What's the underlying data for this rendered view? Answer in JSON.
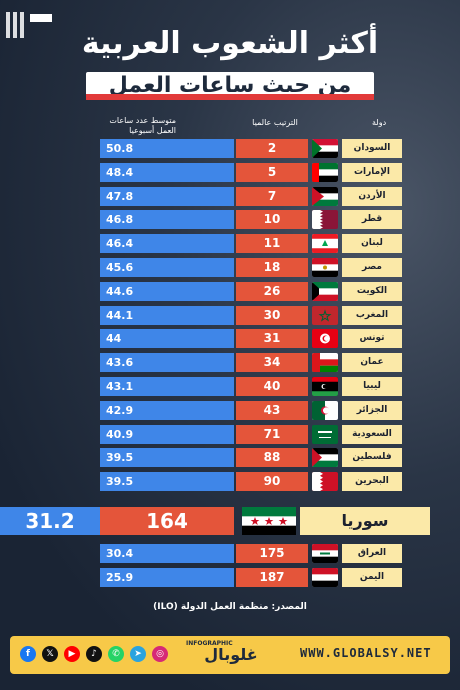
{
  "title": "أكثر الشعوب العربية",
  "subtitle": "من حيث ساعات العمل",
  "headers": {
    "country": "دولة",
    "rank": "الترتيب عالميا",
    "hours_line1": "متوسط عدد ساعات",
    "hours_line2": "العمل أسبوعيا"
  },
  "chart_data": {
    "type": "table",
    "columns": [
      "دولة",
      "الترتيب عالميا",
      "متوسط عدد ساعات العمل أسبوعيا"
    ],
    "rows": [
      {
        "country": "السودان",
        "rank": "2",
        "hours": "50.8",
        "flag": "sudan-flag"
      },
      {
        "country": "الإمارات",
        "rank": "5",
        "hours": "48.4",
        "flag": "uae-flag"
      },
      {
        "country": "الأردن",
        "rank": "7",
        "hours": "47.8",
        "flag": "jordan-flag"
      },
      {
        "country": "قطر",
        "rank": "10",
        "hours": "46.8",
        "flag": "qatar-flag"
      },
      {
        "country": "لبنان",
        "rank": "11",
        "hours": "46.4",
        "flag": "lebanon-flag"
      },
      {
        "country": "مصر",
        "rank": "18",
        "hours": "45.6",
        "flag": "egypt-flag"
      },
      {
        "country": "الكويت",
        "rank": "26",
        "hours": "44.6",
        "flag": "kuwait-flag"
      },
      {
        "country": "المغرب",
        "rank": "30",
        "hours": "44.1",
        "flag": "morocco-flag"
      },
      {
        "country": "تونس",
        "rank": "31",
        "hours": "44",
        "flag": "tunisia-flag"
      },
      {
        "country": "عمان",
        "rank": "34",
        "hours": "43.6",
        "flag": "oman-flag"
      },
      {
        "country": "ليبيا",
        "rank": "40",
        "hours": "43.1",
        "flag": "libya-flag"
      },
      {
        "country": "الجزائر",
        "rank": "43",
        "hours": "42.9",
        "flag": "algeria-flag"
      },
      {
        "country": "السعودية",
        "rank": "71",
        "hours": "40.9",
        "flag": "saudi-flag"
      },
      {
        "country": "فلسطين",
        "rank": "88",
        "hours": "39.5",
        "flag": "palestine-flag"
      },
      {
        "country": "البحرين",
        "rank": "90",
        "hours": "39.5",
        "flag": "bahrain-flag"
      }
    ],
    "highlight": {
      "country": "سوريا",
      "rank": "164",
      "hours": "31.2",
      "flag": "syria-flag"
    },
    "rows_after": [
      {
        "country": "العراق",
        "rank": "175",
        "hours": "30.4",
        "flag": "iraq-flag"
      },
      {
        "country": "اليمن",
        "rank": "187",
        "hours": "25.9",
        "flag": "yemen-flag"
      }
    ]
  },
  "source": "المصدر: منظمة العمل الدولة (ILO)",
  "footer": {
    "logo_text": "غلوبال",
    "logo_tag": "INFOGRAPHIC",
    "website": "WWW.GLOBALSY.NET",
    "social_icons": [
      "facebook-icon",
      "x-icon",
      "youtube-icon",
      "tiktok-icon",
      "whatsapp-icon",
      "telegram-icon",
      "instagram-icon"
    ]
  },
  "colors": {
    "hours_bar": "#3f86e8",
    "rank_bar": "#e4553a",
    "country_bg": "#fbe9a8",
    "footer_bg": "#f7c948"
  }
}
